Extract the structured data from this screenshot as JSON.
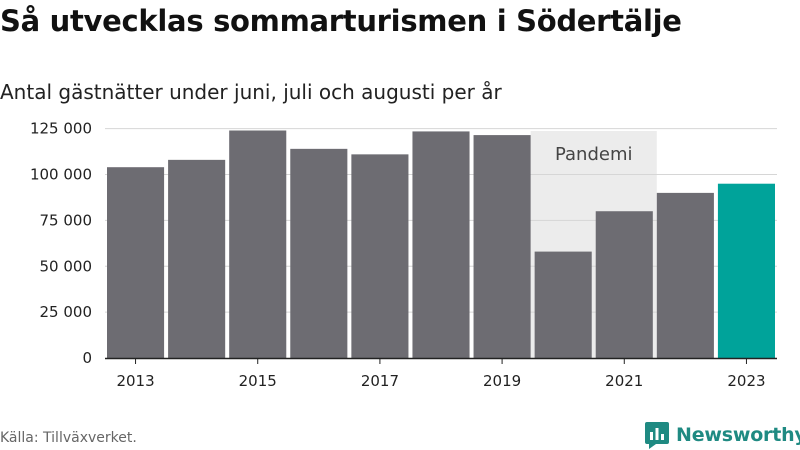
{
  "title": "Så utvecklas sommarturismen i Södertälje",
  "subtitle": "Antal gästnätter under juni, juli och augusti per år",
  "source": "Källa: Tillväxverket.",
  "brand": {
    "name": "Newsworthy",
    "icon": "newsworthy-logo-icon",
    "color": "#1f8a82"
  },
  "chart_data": {
    "type": "bar",
    "categories": [
      "2013",
      "2014",
      "2015",
      "2016",
      "2017",
      "2018",
      "2019",
      "2020",
      "2021",
      "2022",
      "2023"
    ],
    "values": [
      104000,
      108000,
      124000,
      114000,
      111000,
      123500,
      121500,
      58000,
      80000,
      90000,
      95000
    ],
    "x_tick_labels": [
      "2013",
      "2015",
      "2017",
      "2019",
      "2021",
      "2023"
    ],
    "y_ticks": [
      0,
      25000,
      50000,
      75000,
      100000,
      125000
    ],
    "y_tick_labels": [
      "0",
      "25 000",
      "50 000",
      "75 000",
      "100 000",
      "125 000"
    ],
    "ylim": [
      0,
      127000
    ],
    "grid": true,
    "colors": {
      "default": "#6d6c72",
      "highlight": "#00a39a",
      "band": "#ececec"
    },
    "highlight_category": "2023",
    "annotation": {
      "label": "Pandemi",
      "x_range": [
        "2020",
        "2021"
      ]
    }
  }
}
